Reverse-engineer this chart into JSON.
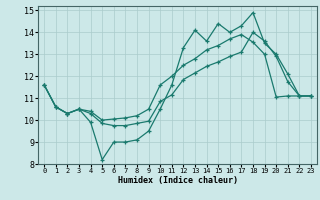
{
  "title": "",
  "xlabel": "Humidex (Indice chaleur)",
  "bg_color": "#cce8e8",
  "grid_color": "#aacccc",
  "line_color": "#1a7a6e",
  "xlim": [
    -0.5,
    23.5
  ],
  "ylim": [
    8,
    15.2
  ],
  "xticks": [
    0,
    1,
    2,
    3,
    4,
    5,
    6,
    7,
    8,
    9,
    10,
    11,
    12,
    13,
    14,
    15,
    16,
    17,
    18,
    19,
    20,
    21,
    22,
    23
  ],
  "yticks": [
    8,
    9,
    10,
    11,
    12,
    13,
    14,
    15
  ],
  "line1_x": [
    0,
    1,
    2,
    3,
    4,
    5,
    6,
    7,
    8,
    9,
    10,
    11,
    12,
    13,
    14,
    15,
    16,
    17,
    18,
    19,
    20,
    21,
    22,
    23
  ],
  "line1_y": [
    11.6,
    10.6,
    10.3,
    10.5,
    9.9,
    8.2,
    9.0,
    9.0,
    9.1,
    9.5,
    10.5,
    11.6,
    13.3,
    14.1,
    13.6,
    14.4,
    14.0,
    14.3,
    14.9,
    13.5,
    13.0,
    12.1,
    11.1,
    11.1
  ],
  "line2_x": [
    0,
    1,
    2,
    3,
    4,
    5,
    6,
    7,
    8,
    9,
    10,
    11,
    12,
    13,
    14,
    15,
    16,
    17,
    18,
    19,
    20,
    21,
    22,
    23
  ],
  "line2_y": [
    11.6,
    10.6,
    10.3,
    10.5,
    10.4,
    10.0,
    10.05,
    10.1,
    10.2,
    10.5,
    11.6,
    12.0,
    12.5,
    12.8,
    13.2,
    13.4,
    13.7,
    13.9,
    13.55,
    13.0,
    11.05,
    11.1,
    11.1,
    11.1
  ],
  "line3_x": [
    0,
    1,
    2,
    3,
    4,
    5,
    6,
    7,
    8,
    9,
    10,
    11,
    12,
    13,
    14,
    15,
    16,
    17,
    18,
    19,
    20,
    21,
    22,
    23
  ],
  "line3_y": [
    11.6,
    10.6,
    10.3,
    10.5,
    10.3,
    9.85,
    9.75,
    9.75,
    9.85,
    9.95,
    10.85,
    11.15,
    11.85,
    12.15,
    12.45,
    12.65,
    12.9,
    13.1,
    14.0,
    13.6,
    12.9,
    11.75,
    11.1,
    11.1
  ]
}
